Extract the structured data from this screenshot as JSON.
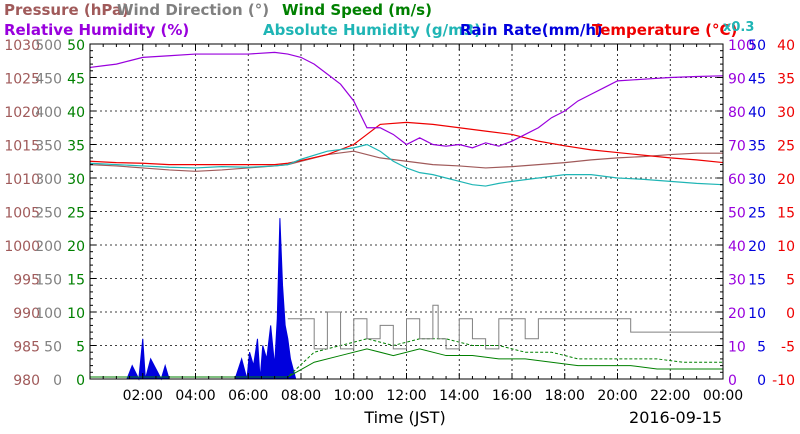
{
  "chart_data": {
    "type": "line",
    "title": "",
    "legend": [
      {
        "key": "pressure",
        "label": "Pressure (hPa)",
        "color": "#a05a5a"
      },
      {
        "key": "wind_dir",
        "label": "Wind Direction (°)",
        "color": "#808080"
      },
      {
        "key": "wind_speed",
        "label": "Wind Speed (m/s)",
        "color": "#008000"
      },
      {
        "key": "rh",
        "label": "Relative Humidity (%)",
        "color": "#9900dd"
      },
      {
        "key": "ah",
        "label": "Absolute Humidity (g/m3)",
        "color": "#1fb5b5"
      },
      {
        "key": "rain",
        "label": "Rain Rate(mm/h)",
        "color": "#0000dd"
      },
      {
        "key": "temp",
        "label": "Temperature (°C)",
        "color": "#ee0000"
      },
      {
        "key": "ah_scale",
        "label": "x0.3",
        "color": "#1fb5b5"
      }
    ],
    "xlabel": "Time (JST)",
    "date_label": "2016-09-15",
    "x_ticks": [
      "02:00",
      "04:00",
      "06:00",
      "08:00",
      "10:00",
      "12:00",
      "14:00",
      "16:00",
      "18:00",
      "20:00",
      "22:00",
      "00:00"
    ],
    "xlim": [
      0,
      24
    ],
    "y_axes": [
      {
        "key": "pressure",
        "side": "left",
        "color": "#a05a5a",
        "range": [
          980,
          1030
        ],
        "ticks": [
          "1030",
          "1025",
          "1020",
          "1015",
          "1010",
          "1005",
          "1000",
          "995",
          "990",
          "985",
          "980"
        ]
      },
      {
        "key": "wind_dir",
        "side": "left",
        "color": "#808080",
        "range": [
          0,
          500
        ],
        "ticks": [
          "500",
          "450",
          "400",
          "350",
          "300",
          "250",
          "200",
          "150",
          "100",
          "50",
          "0"
        ]
      },
      {
        "key": "wind_speed",
        "side": "left",
        "color": "#008000",
        "range": [
          0,
          50
        ],
        "ticks": [
          "50",
          "45",
          "40",
          "35",
          "30",
          "25",
          "20",
          "15",
          "10",
          "5",
          "0"
        ]
      },
      {
        "key": "rh",
        "side": "right",
        "color": "#9900dd",
        "range": [
          0,
          100
        ],
        "ticks": [
          "100",
          "90",
          "80",
          "70",
          "60",
          "50",
          "40",
          "30",
          "20",
          "10",
          "0"
        ]
      },
      {
        "key": "rain",
        "side": "right",
        "color": "#0000dd",
        "range": [
          0,
          50
        ],
        "ticks": [
          "50",
          "45",
          "40",
          "35",
          "30",
          "25",
          "20",
          "15",
          "10",
          "5",
          "0"
        ]
      },
      {
        "key": "temp",
        "side": "right",
        "color": "#ee0000",
        "range": [
          -10,
          40
        ],
        "ticks": [
          "40",
          "35",
          "30",
          "25",
          "20",
          "15",
          "10",
          "5",
          "0",
          "-5",
          "-10"
        ]
      }
    ],
    "series": [
      {
        "name": "Pressure (hPa)",
        "axis": "pressure",
        "color": "#a05a5a",
        "x": [
          0,
          1,
          2,
          3,
          4,
          5,
          6,
          7,
          7.5,
          8,
          9,
          10,
          11,
          12,
          13,
          14,
          15,
          16,
          17,
          18,
          19,
          20,
          21,
          22,
          23,
          24
        ],
        "y": [
          1012,
          1011.8,
          1011.5,
          1011.2,
          1011,
          1011.2,
          1011.5,
          1011.8,
          1012,
          1012.5,
          1013.5,
          1014,
          1013,
          1012.5,
          1012,
          1011.8,
          1011.5,
          1011.7,
          1012,
          1012.3,
          1012.7,
          1013,
          1013.2,
          1013.5,
          1013.7,
          1013.7
        ]
      },
      {
        "name": "Temperature (°C)",
        "axis": "temp",
        "color": "#ee0000",
        "x": [
          0,
          1,
          2,
          3,
          4,
          5,
          6,
          7,
          7.5,
          8,
          9,
          10,
          10.5,
          11,
          12,
          13,
          14,
          15,
          16,
          17,
          18,
          19,
          20,
          21,
          22,
          23,
          24
        ],
        "y": [
          22.5,
          22.3,
          22.2,
          22,
          22,
          22,
          22,
          22,
          22.2,
          22.6,
          23.5,
          25,
          26.5,
          28,
          28.3,
          28,
          27.5,
          27,
          26.5,
          25.5,
          24.8,
          24.2,
          23.8,
          23.4,
          23,
          22.7,
          22.3
        ]
      },
      {
        "name": "Absolute Humidity (g/m3)",
        "axis": "temp",
        "color": "#1fb5b5",
        "x": [
          0,
          1,
          2,
          3,
          4,
          5,
          6,
          7,
          7.5,
          8,
          9,
          10,
          10.5,
          11,
          11.5,
          12,
          12.5,
          13,
          13.5,
          14,
          14.5,
          15,
          15.5,
          16,
          17,
          18,
          19,
          20,
          21,
          22,
          23,
          24
        ],
        "y": [
          22.2,
          22,
          21.8,
          21.6,
          21.5,
          21.7,
          21.6,
          21.8,
          22,
          22.8,
          24,
          24.5,
          25,
          24,
          22.5,
          21.5,
          20.8,
          20.5,
          20,
          19.5,
          19,
          18.8,
          19.2,
          19.5,
          20,
          20.5,
          20.5,
          20,
          19.8,
          19.5,
          19.2,
          19
        ]
      },
      {
        "name": "Relative Humidity (%)",
        "axis": "rh",
        "color": "#9900dd",
        "x": [
          0,
          0.5,
          1,
          1.5,
          2,
          3,
          4,
          5,
          6,
          7,
          7.5,
          8,
          8.5,
          9,
          9.5,
          10,
          10.5,
          11,
          11.5,
          12,
          12.5,
          13,
          13.5,
          14,
          14.5,
          15,
          15.5,
          16,
          16.5,
          17,
          17.5,
          18,
          18.5,
          19,
          19.5,
          20,
          21,
          22,
          23,
          24
        ],
        "y": [
          93,
          93.5,
          94,
          95,
          96,
          96.5,
          97,
          97,
          97,
          97.5,
          97,
          96,
          94,
          91,
          88,
          83,
          75,
          75,
          73,
          70,
          72,
          70,
          69.5,
          70,
          69,
          70.5,
          69.5,
          71,
          73,
          75,
          78,
          80,
          83,
          85,
          87,
          89,
          89.5,
          90,
          90.3,
          90.5
        ]
      }
    ],
    "rain": {
      "name": "Rain Rate(mm/h)",
      "axis": "rain",
      "color": "#0000dd",
      "x": [
        1.4,
        1.6,
        1.85,
        2.0,
        2.1,
        2.3,
        2.7,
        2.85,
        3.0,
        5.5,
        5.75,
        5.95,
        6.05,
        6.2,
        6.35,
        6.45,
        6.55,
        6.7,
        6.85,
        7.0,
        7.1,
        7.2,
        7.3,
        7.4,
        7.5,
        7.6,
        7.8
      ],
      "y": [
        0,
        2,
        0,
        6,
        0,
        3,
        0,
        2,
        0,
        0,
        3,
        0,
        4,
        2,
        6,
        0,
        5,
        3,
        8,
        2,
        9,
        24,
        14,
        8,
        6,
        3,
        0
      ]
    },
    "wind_direction": {
      "name": "Wind Direction (°)",
      "axis": "wind_dir",
      "color": "#808080",
      "x": [
        7.5,
        7.7,
        8.3,
        8.5,
        9.0,
        9.5,
        10.0,
        10.5,
        11.0,
        11.5,
        12.0,
        12.5,
        13.0,
        13.2,
        13.5,
        14.0,
        14.5,
        15.0,
        15.5,
        16.0,
        16.5,
        17.0,
        17.5,
        18.0,
        18.5,
        19.0,
        19.5,
        20.0,
        20.5,
        21.0,
        22.0,
        23.0,
        24.0
      ],
      "y": [
        90,
        90,
        90,
        45,
        100,
        45,
        90,
        60,
        80,
        45,
        90,
        60,
        110,
        60,
        45,
        90,
        60,
        45,
        90,
        90,
        60,
        90,
        90,
        90,
        90,
        90,
        90,
        90,
        70,
        70,
        70,
        70,
        70
      ]
    },
    "wind_speed": {
      "name": "Wind Speed (m/s)",
      "axis": "wind_speed",
      "color": "#008000",
      "x": [
        0,
        2,
        4,
        6,
        7.5,
        8.5,
        9.5,
        10.5,
        11.5,
        12.5,
        13.5,
        14.5,
        15.5,
        16.5,
        17.5,
        18.5,
        19.5,
        20.5,
        21.5,
        22.5,
        23.5,
        24
      ],
      "y": [
        0.3,
        0.3,
        0.3,
        0.3,
        0.3,
        2.5,
        3.5,
        4.5,
        3.5,
        4.5,
        3.5,
        3.5,
        3,
        3,
        2.5,
        2,
        2,
        2,
        1.5,
        1.5,
        1.5,
        1.5
      ],
      "y_gust": [
        0.3,
        0.3,
        0.3,
        0.3,
        0.3,
        4,
        5,
        6,
        5,
        6,
        6,
        5,
        5,
        4,
        4,
        3,
        3,
        3,
        3,
        2.5,
        2.5,
        2.5
      ]
    }
  }
}
